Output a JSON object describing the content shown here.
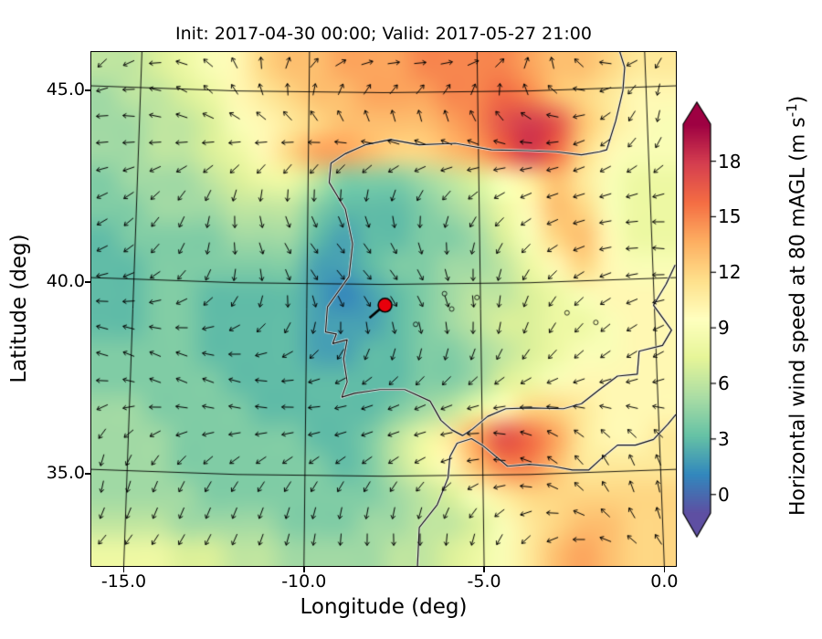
{
  "figure": {
    "title": "Init: 2017-04-30 00:00; Valid: 2017-05-27 21:00",
    "xlabel": "Longitude (deg)",
    "ylabel": "Latitude (deg)"
  },
  "colorbar": {
    "label_main": "Horizontal wind speed at 80 mAGL (m s",
    "label_sup": "-1",
    "label_end": ")",
    "tick_labels": [
      "0",
      "3",
      "6",
      "9",
      "12",
      "15",
      "18"
    ]
  },
  "chart_data": {
    "type": "heatmap",
    "title": "Init: 2017-04-30 00:00; Valid: 2017-05-27 21:00",
    "xlabel": "Longitude (deg)",
    "ylabel": "Latitude (deg)",
    "xlim": [
      -15.9,
      0.32
    ],
    "ylim": [
      32.6,
      46.0
    ],
    "xticks": [
      -15.0,
      -10.0,
      -5.0,
      0.0
    ],
    "yticks": [
      35.0,
      40.0,
      45.0
    ],
    "xtick_labels": [
      "-15.0",
      "-10.0",
      "-5.0",
      "0.0"
    ],
    "ytick_labels": [
      "35.0",
      "40.0",
      "45.0"
    ],
    "grid_on": true,
    "legend": "colorbar-right",
    "colorbar": {
      "label": "Horizontal wind speed at 80 mAGL (m s^-1)",
      "ticks": [
        0,
        3,
        6,
        9,
        12,
        15,
        18
      ],
      "vmin": -1,
      "vmax": 20,
      "extend": "both"
    },
    "colormap": {
      "name": "Spectral_r",
      "stops": [
        [
          0.0,
          "#5e4fa2"
        ],
        [
          0.1,
          "#3288bd"
        ],
        [
          0.2,
          "#66c2a5"
        ],
        [
          0.3,
          "#abdda4"
        ],
        [
          0.4,
          "#e6f598"
        ],
        [
          0.5,
          "#ffffbf"
        ],
        [
          0.6,
          "#fee08b"
        ],
        [
          0.7,
          "#fdae61"
        ],
        [
          0.8,
          "#f46d43"
        ],
        [
          0.9,
          "#d53e4f"
        ],
        [
          1.0,
          "#9e0142"
        ]
      ]
    },
    "marker": {
      "lon": -7.75,
      "lat": 39.4,
      "color": "#e8000b",
      "edge": "#000000"
    },
    "wind_vectors": "black arrow field overlaid on ~30 px grid",
    "grid": {
      "lon_start": -15.9,
      "lon_end": 0.32,
      "lat_start": 46.0,
      "lat_end": 32.6,
      "ncols": 22,
      "nrows": 18,
      "units": "m/s",
      "values": [
        [
          6,
          6,
          7,
          8,
          9,
          10,
          12,
          13,
          13,
          14,
          14,
          14,
          15,
          15,
          15,
          15,
          14,
          13,
          13,
          12,
          11,
          11
        ],
        [
          5,
          6,
          6,
          7,
          8,
          10,
          11,
          12,
          13,
          13,
          14,
          14,
          14,
          15,
          15,
          16,
          15,
          13,
          12,
          11,
          10,
          10
        ],
        [
          5,
          5,
          6,
          6,
          7,
          9,
          10,
          11,
          12,
          13,
          13,
          13,
          13,
          14,
          15,
          17,
          18,
          17,
          13,
          11,
          10,
          9
        ],
        [
          5,
          5,
          6,
          6,
          7,
          8,
          10,
          12,
          14,
          14,
          13,
          12,
          12,
          13,
          14,
          16,
          18,
          16,
          12,
          10,
          9,
          9
        ],
        [
          4,
          5,
          5,
          5,
          6,
          7,
          8,
          8,
          6,
          4,
          4,
          4,
          5,
          6,
          7,
          9,
          11,
          13,
          11,
          9,
          8,
          8
        ],
        [
          4,
          4,
          5,
          5,
          5,
          6,
          6,
          6,
          4,
          3,
          3,
          3,
          4,
          5,
          6,
          8,
          10,
          13,
          12,
          9,
          8,
          8
        ],
        [
          3,
          4,
          4,
          4,
          4,
          5,
          5,
          5,
          3,
          2,
          3,
          3,
          4,
          4,
          5,
          7,
          9,
          12,
          13,
          10,
          8,
          8
        ],
        [
          3,
          3,
          4,
          4,
          4,
          4,
          4,
          4,
          2,
          2,
          3,
          4,
          4,
          5,
          5,
          6,
          8,
          10,
          12,
          10,
          9,
          9
        ],
        [
          3,
          3,
          4,
          4,
          3,
          3,
          3,
          3,
          2,
          1,
          2,
          3,
          4,
          5,
          6,
          6,
          7,
          8,
          9,
          10,
          10,
          10
        ],
        [
          3,
          3,
          4,
          4,
          3,
          3,
          3,
          3,
          2,
          2,
          2,
          3,
          4,
          5,
          6,
          7,
          7,
          8,
          8,
          9,
          10,
          10
        ],
        [
          4,
          4,
          4,
          4,
          3,
          3,
          3,
          3,
          2,
          2,
          3,
          3,
          4,
          4,
          5,
          6,
          7,
          8,
          9,
          9,
          10,
          10
        ],
        [
          4,
          4,
          4,
          4,
          4,
          3,
          3,
          3,
          3,
          3,
          3,
          3,
          4,
          4,
          5,
          7,
          8,
          9,
          10,
          10,
          10,
          10
        ],
        [
          5,
          5,
          4,
          4,
          4,
          4,
          3,
          3,
          3,
          3,
          3,
          4,
          5,
          6,
          8,
          10,
          12,
          12,
          11,
          10,
          10,
          10
        ],
        [
          5,
          5,
          5,
          4,
          4,
          4,
          4,
          4,
          3,
          3,
          4,
          6,
          8,
          11,
          14,
          17,
          16,
          14,
          11,
          10,
          10,
          11
        ],
        [
          5,
          5,
          5,
          4,
          4,
          4,
          4,
          4,
          4,
          3,
          4,
          6,
          8,
          10,
          13,
          15,
          15,
          13,
          11,
          11,
          11,
          11
        ],
        [
          5,
          5,
          5,
          5,
          4,
          4,
          4,
          4,
          4,
          4,
          4,
          5,
          6,
          7,
          9,
          11,
          12,
          12,
          12,
          12,
          12,
          12
        ],
        [
          6,
          6,
          6,
          5,
          5,
          5,
          5,
          4,
          4,
          4,
          5,
          5,
          6,
          6,
          7,
          9,
          11,
          12,
          13,
          13,
          12,
          12
        ],
        [
          8,
          8,
          8,
          7,
          7,
          6,
          6,
          5,
          5,
          5,
          5,
          6,
          6,
          7,
          8,
          9,
          11,
          13,
          14,
          13,
          12,
          12
        ]
      ]
    }
  }
}
